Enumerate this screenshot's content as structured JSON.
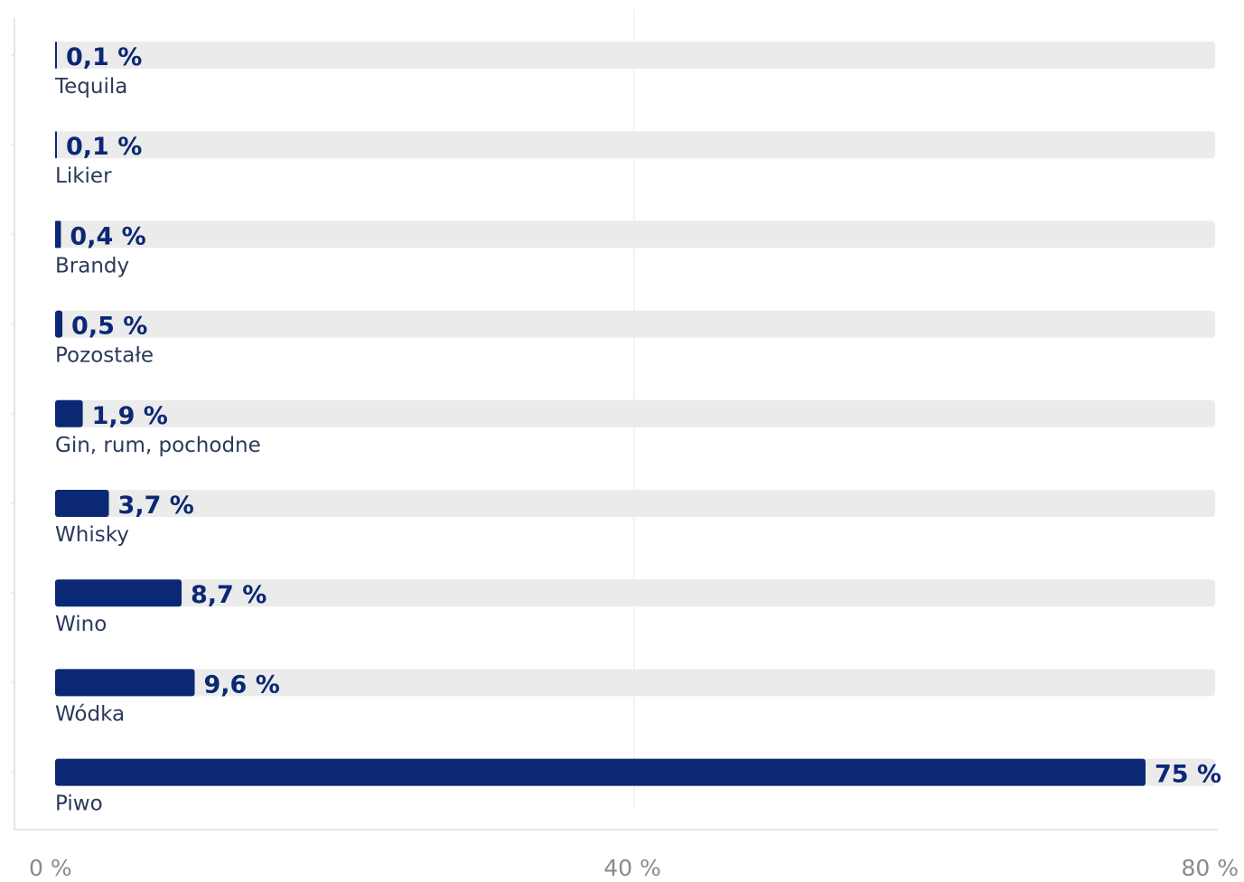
{
  "chart_data": {
    "type": "bar",
    "orientation": "horizontal",
    "categories": [
      "Tequila",
      "Likier",
      "Brandy",
      "Pozostałe",
      "Gin, rum, pochodne",
      "Whisky",
      "Wino",
      "Wódka",
      "Piwo"
    ],
    "values": [
      0.1,
      0.1,
      0.4,
      0.5,
      1.9,
      3.7,
      8.7,
      9.6,
      75
    ],
    "value_labels": [
      "0,1 %",
      "0,1 %",
      "0,4 %",
      "0,5 %",
      "1,9 %",
      "3,7 %",
      "8,7 %",
      "9,6 %",
      "75 %"
    ],
    "xlim": [
      0,
      80
    ],
    "x_ticks": [
      0,
      40,
      80
    ],
    "x_tick_labels": [
      "0 %",
      "40 %",
      "80 %"
    ],
    "grid": "vertical gridline at 40 %",
    "legend": "none",
    "colors": {
      "bar": "#0b2874",
      "track": "#ebebeb",
      "value_text": "#0b2874",
      "category_text": "#2b3a5a",
      "tick_text": "#8a8a8a",
      "gridline": "#e8e8e8",
      "axis_line": "#e6e6e6"
    }
  }
}
